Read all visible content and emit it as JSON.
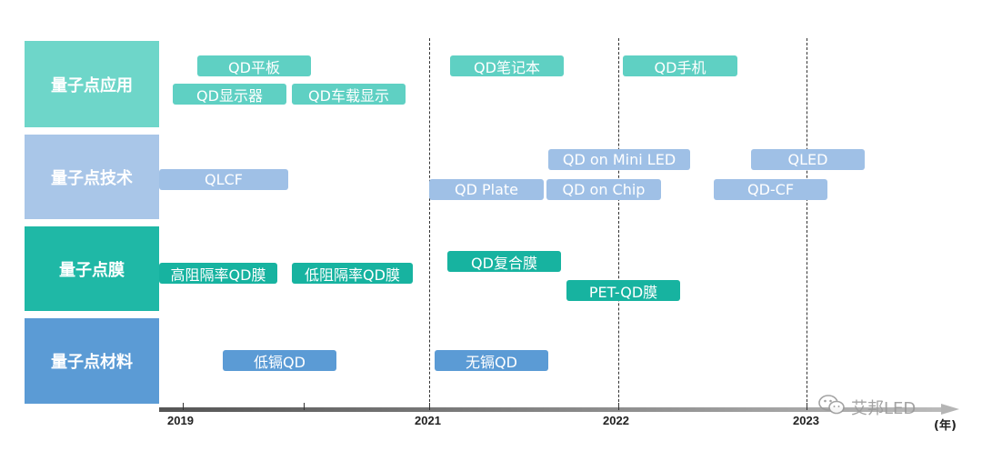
{
  "colors": {
    "app_row": "#6ed6c9",
    "app_pill": "#5fd0c3",
    "tech_row": "#a9c6e8",
    "tech_pill": "#9fc0e6",
    "film_row": "#1fb8a6",
    "film_pill": "#17b3a0",
    "mat_row": "#5b9bd5",
    "mat_pill": "#5b9bd5"
  },
  "rows": {
    "applications": "量子点应用",
    "technology": "量子点技术",
    "film": "量子点膜",
    "materials": "量子点材料"
  },
  "items": {
    "qd_tablet": "QD平板",
    "qd_display": "QD显示器",
    "qd_car_display": "QD车载显示",
    "qd_notebook": "QD笔记本",
    "qd_phone": "QD手机",
    "qlcf": "QLCF",
    "qd_plate": "QD Plate",
    "qd_on_mini_led": "QD on Mini LED",
    "qd_on_chip": "QD on Chip",
    "qled": "QLED",
    "qd_cf": "QD-CF",
    "high_barrier_film": "高阻隔率QD膜",
    "low_barrier_film": "低阻隔率QD膜",
    "qd_composite_film": "QD复合膜",
    "pet_qd_film": "PET-QD膜",
    "low_cd_qd": "低镉QD",
    "cd_free_qd": "无镉QD"
  },
  "axis": {
    "ticks": [
      "2019",
      "2021",
      "2022",
      "2023"
    ],
    "unit": "(年)"
  },
  "watermark": {
    "text": "艾邦LED",
    "icon": "wechat-icon"
  }
}
